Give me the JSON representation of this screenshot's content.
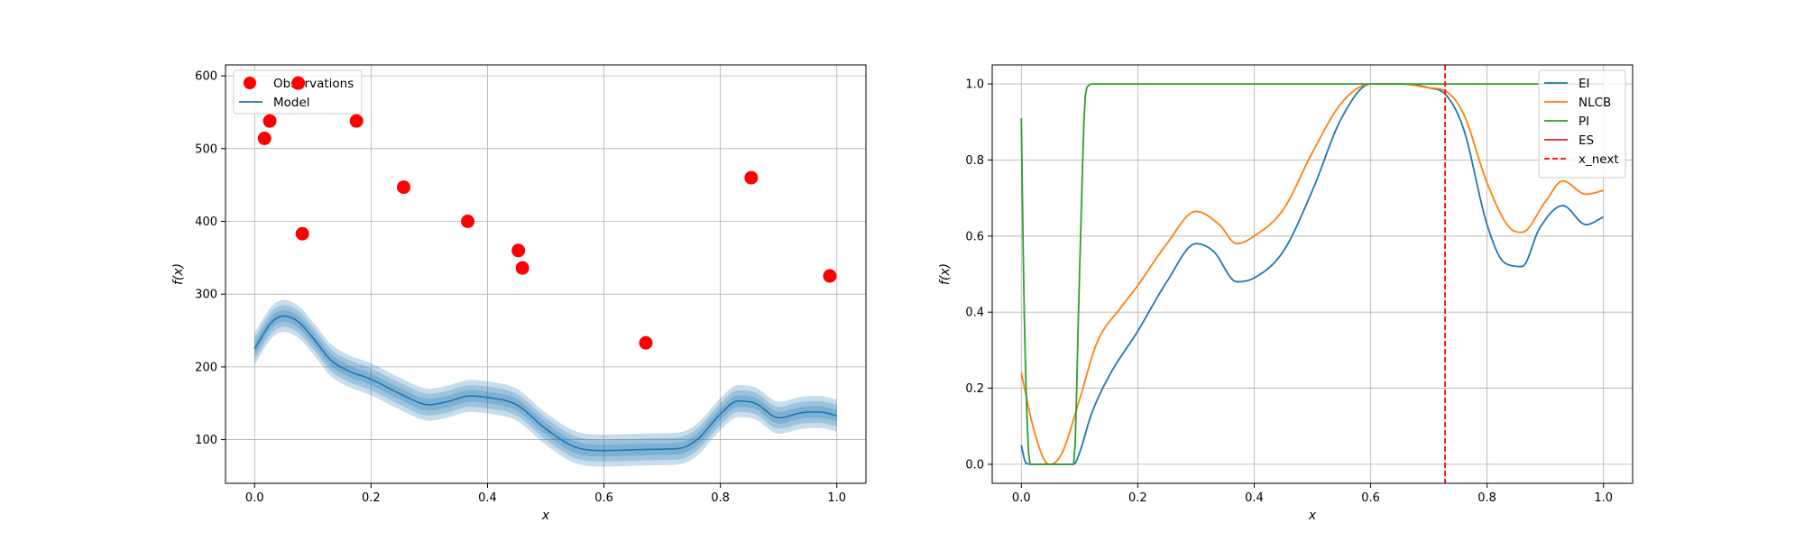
{
  "chart_data": [
    {
      "type": "scatter+line",
      "xlabel": "x",
      "ylabel": "f(x)",
      "xlim": [
        -0.05,
        1.05
      ],
      "ylim": [
        40,
        615
      ],
      "xticks": [
        0.0,
        0.2,
        0.4,
        0.6,
        0.8,
        1.0
      ],
      "xtick_labels": [
        "0.0",
        "0.2",
        "0.4",
        "0.6",
        "0.8",
        "1.0"
      ],
      "yticks": [
        100,
        200,
        300,
        400,
        500,
        600
      ],
      "ytick_labels": [
        "100",
        "200",
        "300",
        "400",
        "500",
        "600"
      ],
      "grid": true,
      "legend": {
        "placement": "top-left",
        "entries": [
          "Observations",
          "Model"
        ]
      },
      "colors": {
        "observations": "#ff0000",
        "model": "#1f77b4"
      },
      "observations": {
        "name": "Observations",
        "x": [
          0.017,
          0.026,
          0.075,
          0.082,
          0.175,
          0.256,
          0.366,
          0.453,
          0.46,
          0.672,
          0.853,
          0.988
        ],
        "y": [
          514,
          538,
          590,
          383,
          538,
          447,
          400,
          360,
          336,
          233,
          460,
          325
        ]
      },
      "model": {
        "name": "Model",
        "x": [
          0.0,
          0.03,
          0.05,
          0.075,
          0.1,
          0.13,
          0.16,
          0.2,
          0.25,
          0.3,
          0.33,
          0.37,
          0.4,
          0.45,
          0.5,
          0.55,
          0.6,
          0.65,
          0.7,
          0.73,
          0.76,
          0.8,
          0.83,
          0.86,
          0.9,
          0.94,
          0.97,
          1.0
        ],
        "mean": [
          225,
          262,
          270,
          262,
          240,
          210,
          195,
          183,
          163,
          148,
          152,
          160,
          158,
          148,
          115,
          90,
          85,
          86,
          87,
          88,
          100,
          135,
          153,
          150,
          130,
          137,
          138,
          133
        ],
        "bands": [
          8,
          15,
          22
        ]
      }
    },
    {
      "type": "line",
      "xlabel": "x",
      "ylabel": "f(x)",
      "xlim": [
        -0.05,
        1.05
      ],
      "ylim": [
        -0.05,
        1.05
      ],
      "xticks": [
        0.0,
        0.2,
        0.4,
        0.6,
        0.8,
        1.0
      ],
      "xtick_labels": [
        "0.0",
        "0.2",
        "0.4",
        "0.6",
        "0.8",
        "1.0"
      ],
      "yticks": [
        0.0,
        0.2,
        0.4,
        0.6,
        0.8,
        1.0
      ],
      "ytick_labels": [
        "0.0",
        "0.2",
        "0.4",
        "0.6",
        "0.8",
        "1.0"
      ],
      "grid": true,
      "legend": {
        "placement": "top-right"
      },
      "series": [
        {
          "name": "EI",
          "color": "#1f77b4",
          "x": [
            0.0,
            0.008,
            0.02,
            0.05,
            0.09,
            0.1,
            0.12,
            0.15,
            0.2,
            0.25,
            0.3,
            0.33,
            0.37,
            0.4,
            0.45,
            0.5,
            0.55,
            0.6,
            0.65,
            0.7,
            0.73,
            0.76,
            0.8,
            0.83,
            0.86,
            0.89,
            0.93,
            0.97,
            1.0
          ],
          "y": [
            0.05,
            0.003,
            0.0,
            0.0,
            0.0,
            0.03,
            0.13,
            0.23,
            0.35,
            0.48,
            0.58,
            0.56,
            0.48,
            0.49,
            0.56,
            0.72,
            0.91,
            1.0,
            1.0,
            0.99,
            0.97,
            0.88,
            0.63,
            0.53,
            0.52,
            0.62,
            0.68,
            0.63,
            0.65
          ]
        },
        {
          "name": "NLCB",
          "color": "#ff7f0e",
          "x": [
            0.0,
            0.02,
            0.04,
            0.05,
            0.07,
            0.1,
            0.13,
            0.17,
            0.2,
            0.25,
            0.3,
            0.34,
            0.37,
            0.4,
            0.45,
            0.5,
            0.55,
            0.6,
            0.65,
            0.7,
            0.73,
            0.76,
            0.8,
            0.84,
            0.86,
            0.9,
            0.93,
            0.97,
            1.0
          ],
          "y": [
            0.24,
            0.1,
            0.01,
            0.0,
            0.03,
            0.17,
            0.32,
            0.41,
            0.47,
            0.58,
            0.665,
            0.63,
            0.58,
            0.6,
            0.67,
            0.82,
            0.95,
            1.0,
            1.0,
            0.99,
            0.98,
            0.92,
            0.74,
            0.62,
            0.61,
            0.69,
            0.745,
            0.71,
            0.72
          ]
        },
        {
          "name": "PI",
          "color": "#2ca02c",
          "x": [
            0.0,
            0.005,
            0.015,
            0.03,
            0.09,
            0.1,
            0.11,
            0.115,
            0.12,
            0.2,
            0.4,
            0.6,
            0.8,
            1.0
          ],
          "y": [
            0.91,
            0.4,
            0.0,
            0.0,
            0.0,
            0.5,
            0.97,
            0.995,
            1.0,
            1.0,
            1.0,
            1.0,
            1.0,
            1.0
          ]
        },
        {
          "name": "ES",
          "color": "#d62728",
          "x": [],
          "y": []
        }
      ],
      "vline": {
        "name": "x_next",
        "x": 0.728,
        "color": "#ff0000",
        "style": "dashed"
      }
    }
  ]
}
